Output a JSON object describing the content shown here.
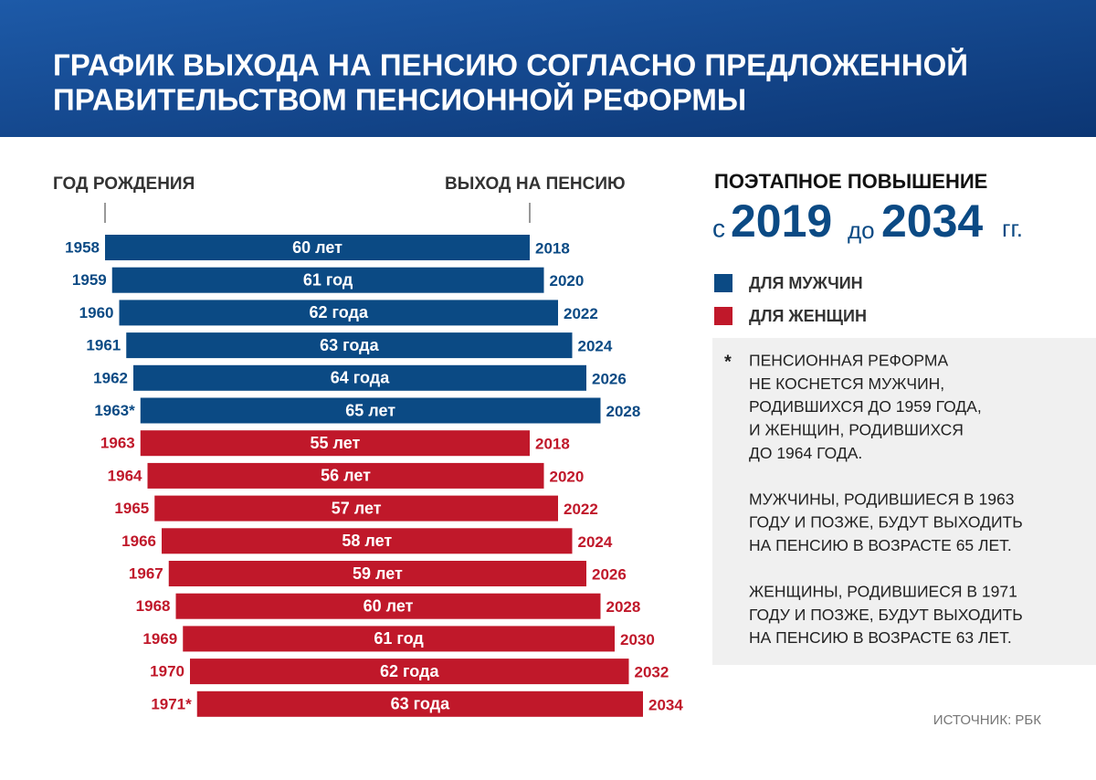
{
  "chart_data": {
    "type": "range-bar",
    "title_lines": [
      "ГРАФИК ВЫХОДА НА ПЕНСИЮ СОГЛАСНО ПРЕДЛОЖЕННОЙ",
      "ПРАВИТЕЛЬСТВОМ ПЕНСИОННОЙ РЕФОРМЫ"
    ],
    "start_axis_label": "ГОД РОЖДЕНИЯ",
    "end_axis_label": "ВЫХОД НА ПЕНСИЮ",
    "xlim": [
      1958,
      2034
    ],
    "series": [
      {
        "name": "ДЛЯ МУЖЧИН",
        "color": "#0b4a84",
        "start": [
          1958,
          1959,
          1960,
          1961,
          1962,
          1963
        ],
        "start_labels": [
          "1958",
          "1959",
          "1960",
          "1961",
          "1962",
          "1963*"
        ],
        "values": [
          60,
          61,
          62,
          63,
          64,
          65
        ],
        "value_labels": [
          "60 лет",
          "61 год",
          "62 года",
          "63 года",
          "64 года",
          "65 лет"
        ],
        "end": [
          2018,
          2020,
          2022,
          2024,
          2026,
          2028
        ]
      },
      {
        "name": "ДЛЯ ЖЕНЩИН",
        "color": "#c0182a",
        "start": [
          1963,
          1964,
          1965,
          1966,
          1967,
          1968,
          1969,
          1970,
          1971
        ],
        "start_labels": [
          "1963",
          "1964",
          "1965",
          "1966",
          "1967",
          "1968",
          "1969",
          "1970",
          "1971*"
        ],
        "values": [
          55,
          56,
          57,
          58,
          59,
          60,
          61,
          62,
          63
        ],
        "value_labels": [
          "55 лет",
          "56 лет",
          "57 лет",
          "58 лет",
          "59 лет",
          "60 лет",
          "61 год",
          "62 года",
          "63 года"
        ],
        "end": [
          2018,
          2020,
          2022,
          2024,
          2026,
          2028,
          2030,
          2032,
          2034
        ]
      }
    ],
    "panel_title": "ПОЭТАПНОЕ ПОВЫШЕНИЕ",
    "period": {
      "prefix": "с",
      "from": 2019,
      "middle": "до",
      "to": 2034,
      "suffix": "гг."
    },
    "note_mark": "*",
    "note": [
      [
        "ПЕНСИОННАЯ РЕФОРМА",
        "НЕ КОСНЕТСЯ МУЖЧИН,",
        "РОДИВШИХСЯ ДО 1959 ГОДА,",
        "И ЖЕНЩИН, РОДИВШИХСЯ",
        "ДО 1964 ГОДА."
      ],
      [
        "МУЖЧИНЫ, РОДИВШИЕСЯ В 1963",
        "ГОДУ И ПОЗЖЕ, БУДУТ ВЫХОДИТЬ",
        "НА ПЕНСИЮ В ВОЗРАСТЕ 65 ЛЕТ."
      ],
      [
        "ЖЕНЩИНЫ, РОДИВШИЕСЯ В 1971",
        "ГОДУ И ПОЗЖЕ, БУДУТ ВЫХОДИТЬ",
        "НА ПЕНСИЮ В ВОЗРАСТЕ 63 ЛЕТ."
      ]
    ],
    "source": "ИСТОЧНИК: РБК"
  }
}
